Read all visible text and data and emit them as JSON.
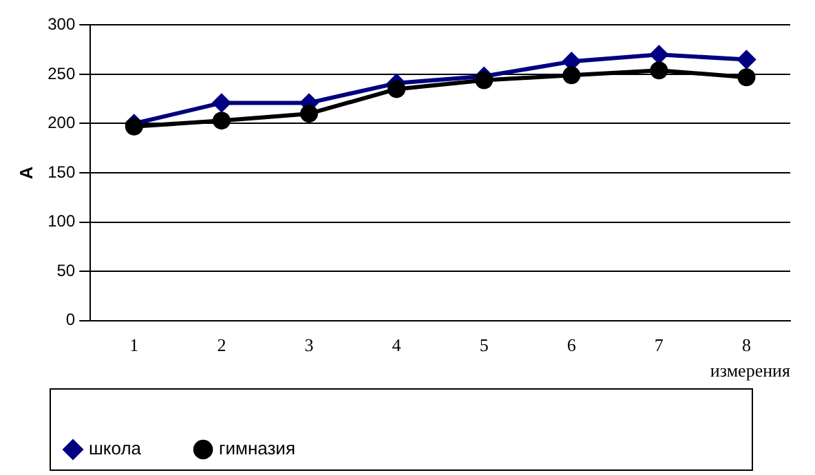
{
  "chart_data": {
    "type": "line",
    "xlabel": "измерения",
    "ylabel": "А",
    "categories": [
      "1",
      "2",
      "3",
      "4",
      "5",
      "6",
      "7",
      "8"
    ],
    "series": [
      {
        "name": "школа",
        "color": "#000080",
        "marker": "diamond",
        "values": [
          200,
          221,
          221,
          241,
          248,
          263,
          270,
          265
        ]
      },
      {
        "name": "гимназия",
        "color": "#000000",
        "marker": "circle",
        "values": [
          197,
          203,
          210,
          235,
          244,
          249,
          254,
          247
        ]
      }
    ],
    "ylim": [
      0,
      300
    ],
    "yticks": [
      0,
      50,
      100,
      150,
      200,
      250,
      300
    ],
    "grid": "y",
    "legend": "bottom"
  }
}
